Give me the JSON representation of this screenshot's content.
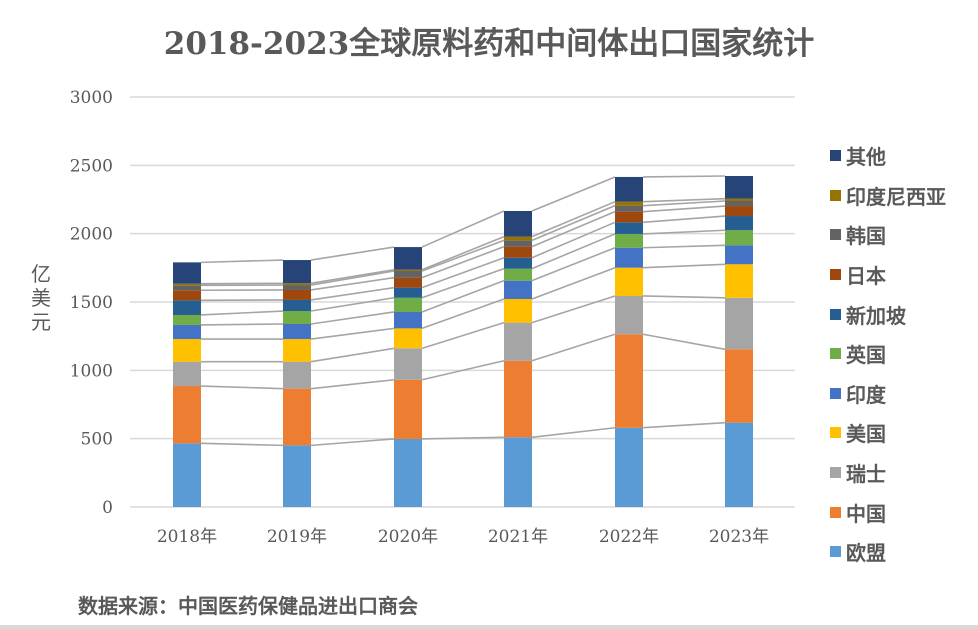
{
  "chart_data": {
    "type": "bar",
    "stacked": true,
    "title": "2018-2023全球原料药和中间体出口国家统计",
    "xlabel": "",
    "ylabel": "亿美元",
    "ylim": [
      0,
      3000
    ],
    "yticks": [
      0,
      500,
      1000,
      1500,
      2000,
      2500,
      3000
    ],
    "ytick_labels": [
      "0",
      "500",
      "1000",
      "1500",
      "2000",
      "2500",
      "3000"
    ],
    "grid": true,
    "series_lines": true,
    "legend_position": "right",
    "categories": [
      "2018年",
      "2019年",
      "2020年",
      "2021年",
      "2022年",
      "2023年"
    ],
    "series": [
      {
        "name": "欧盟",
        "color": "#5b9bd5",
        "values": [
          466,
          451,
          498,
          510,
          580,
          617
        ]
      },
      {
        "name": "中国",
        "color": "#ed7d31",
        "values": [
          419,
          415,
          433,
          560,
          684,
          537
        ]
      },
      {
        "name": "瑞士",
        "color": "#a5a5a5",
        "values": [
          178,
          197,
          230,
          279,
          280,
          377
        ]
      },
      {
        "name": "美国",
        "color": "#ffc000",
        "values": [
          166,
          166,
          146,
          173,
          207,
          245
        ]
      },
      {
        "name": "印度",
        "color": "#4472c4",
        "values": [
          103,
          110,
          120,
          134,
          146,
          139
        ]
      },
      {
        "name": "英国",
        "color": "#70ad47",
        "values": [
          73,
          95,
          104,
          88,
          101,
          110
        ]
      },
      {
        "name": "新加坡",
        "color": "#255e91",
        "values": [
          107,
          81,
          74,
          80,
          85,
          104
        ]
      },
      {
        "name": "日本",
        "color": "#9e480e",
        "values": [
          74,
          73,
          73,
          81,
          78,
          73
        ]
      },
      {
        "name": "韩国",
        "color": "#636363",
        "values": [
          36,
          36,
          49,
          46,
          44,
          37
        ]
      },
      {
        "name": "印度尼西亚",
        "color": "#997300",
        "values": [
          12,
          13,
          9,
          27,
          29,
          17
        ]
      },
      {
        "name": "其他",
        "color": "#264478",
        "values": [
          156,
          170,
          166,
          188,
          181,
          166
        ]
      }
    ]
  },
  "source_note": "数据来源：中国医药保健品进出口商会",
  "colors": {
    "text": "#595959",
    "gridline": "#d9d9d9",
    "series_line": "#a5a5a5"
  }
}
